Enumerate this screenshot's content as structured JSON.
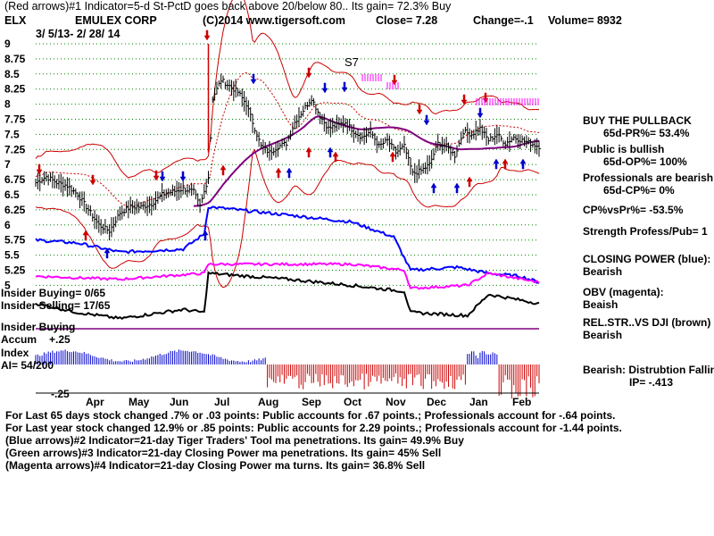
{
  "header": {
    "line1": "(Red arrows)#1 Indicator=5-d St-PctD goes back above 20/below 80.. Its gain= 72.3% Buy",
    "ticker": "ELX",
    "company": "EMULEX CORP",
    "copyright": "(C)2014 www.tigersoft.com",
    "close": "Close=  7.28",
    "change": "Change=-.1",
    "volume": "Volume= 8932",
    "date_range": "3/ 5/13-  2/ 28/ 14",
    "pattern_label": "S7"
  },
  "left_labels": {
    "insider_buying": "Insider Buying= 0/65",
    "insider_selling": "Insider Selling= 17/65",
    "accum_line1": "Insider Buying",
    "accum_line2": "Accum",
    "accum_plus": "+.25",
    "accum_line3": "Index",
    "ai": "AI= 54/200",
    "accum_minus": "-.25"
  },
  "right_panel": [
    "BUY THE PULLBACK",
    "65d-PR%= 53.4%",
    "Public is bullish",
    "65d-OP%= 100%",
    "Professionals are bearish",
    "65d-CP%= 0%",
    "CP%vsPr%= -53.5%",
    "Strength Profess/Pub= 1",
    "CLOSING POWER (blue):",
    "Bearish",
    "OBV (magenta):",
    "Beaish",
    "REL.STR..VS DJI (brown)",
    "Bearish",
    "Bearish:  Distrubtion Falling",
    "IP= -.413"
  ],
  "footer": [
    "For Last 65 days stock changed  .7% or  .03 points:  Public accounts for  .67 points.;  Professionals account for -.64 points.",
    "For Last year stock changed  12.9% or  .85 points:  Public accounts for  2.29 points.;  Professionals account for -1.44 points.",
    "(Blue arrows)#2 Indicator=21-day Tiger Traders' Tool ma penetrations. Its gain= 49.9% Buy",
    "(Green arrows)#3 Indicator=21-day Closing Power ma penetrations. Its gain= 45% Sell",
    "(Magenta arrows)#4 Indicator=21-day Closing Power ma turns. Its gain= 36.8% Sell"
  ],
  "colors": {
    "price": "#000000",
    "bands": "#cc0000",
    "ma": "#800080",
    "closing_power": "#0000ff",
    "obv": "#ff00ff",
    "relstr": "#000000",
    "grid": "#008000",
    "accum_pos": "#0000cc",
    "accum_neg": "#cc0000",
    "buy_arrow": "#cc0000",
    "blue_arrow": "#0000cc"
  },
  "chart_data": {
    "type": "line",
    "title": "ELX EMULEX CORP",
    "x_tick_labels": [
      "Apr",
      "May",
      "Jun",
      "Jul",
      "Aug",
      "Sep",
      "Oct",
      "Nov",
      "Dec",
      "Jan",
      "Feb"
    ],
    "y_tick_labels": [
      "9",
      "8.75",
      "8.5",
      "8.25",
      "8",
      "7.75",
      "7.5",
      "7.25",
      "7",
      "6.75",
      "6.5",
      "6.25",
      "6",
      "5.75",
      "5.5",
      "5.25",
      "5"
    ],
    "ylim": [
      5.0,
      9.0
    ],
    "grid": true,
    "price_anchors": [
      [
        0,
        6.7
      ],
      [
        5,
        6.8
      ],
      [
        10,
        6.7
      ],
      [
        15,
        6.65
      ],
      [
        20,
        6.5
      ],
      [
        25,
        6.25
      ],
      [
        30,
        6.0
      ],
      [
        35,
        5.9
      ],
      [
        40,
        6.2
      ],
      [
        45,
        6.3
      ],
      [
        50,
        6.3
      ],
      [
        55,
        6.35
      ],
      [
        60,
        6.5
      ],
      [
        65,
        6.55
      ],
      [
        70,
        6.6
      ],
      [
        75,
        6.55
      ],
      [
        78,
        6.3
      ],
      [
        82,
        6.8
      ],
      [
        84,
        8.1
      ],
      [
        88,
        8.4
      ],
      [
        92,
        8.3
      ],
      [
        96,
        8.2
      ],
      [
        100,
        8.0
      ],
      [
        103,
        7.7
      ],
      [
        107,
        7.3
      ],
      [
        111,
        7.2
      ],
      [
        115,
        7.3
      ],
      [
        119,
        7.35
      ],
      [
        123,
        7.7
      ],
      [
        127,
        7.9
      ],
      [
        131,
        8.1
      ],
      [
        135,
        7.8
      ],
      [
        139,
        7.6
      ],
      [
        143,
        7.65
      ],
      [
        147,
        7.7
      ],
      [
        151,
        7.55
      ],
      [
        155,
        7.45
      ],
      [
        159,
        7.55
      ],
      [
        163,
        7.3
      ],
      [
        167,
        7.4
      ],
      [
        171,
        7.2
      ],
      [
        175,
        7.3
      ],
      [
        179,
        6.85
      ],
      [
        183,
        6.9
      ],
      [
        187,
        7.0
      ],
      [
        191,
        7.35
      ],
      [
        195,
        7.3
      ],
      [
        199,
        7.15
      ],
      [
        203,
        7.55
      ],
      [
        207,
        7.5
      ],
      [
        211,
        7.6
      ],
      [
        215,
        7.4
      ],
      [
        219,
        7.5
      ],
      [
        223,
        7.35
      ],
      [
        227,
        7.45
      ],
      [
        231,
        7.4
      ],
      [
        235,
        7.35
      ],
      [
        239,
        7.3
      ]
    ],
    "series": [
      {
        "name": "CLOSING POWER (blue)"
      },
      {
        "name": "OBV (magenta)"
      },
      {
        "name": "REL.STR..VS DJI (brown)"
      }
    ]
  }
}
